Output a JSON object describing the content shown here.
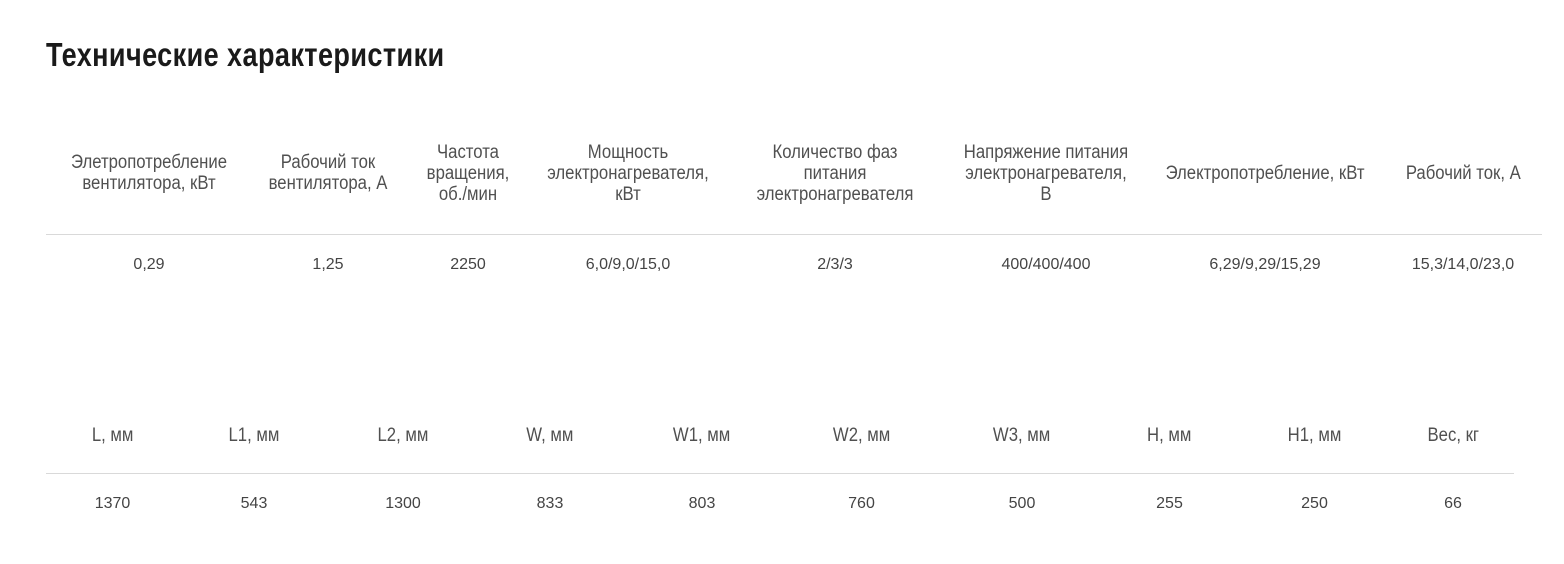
{
  "title": "Технические характеристики",
  "electrical": {
    "headers": [
      "Элетропотребление вентилятора, кВт",
      "Рабочий ток вентилятора, А",
      "Частота вращения, об./мин",
      "Мощность электронагревателя, кВт",
      "Количество фаз питания электронагревателя",
      "Напряжение питания электронагревателя, В",
      "Электропотребление, кВт",
      "Рабочий ток, А"
    ],
    "values": [
      "0,29",
      "1,25",
      "2250",
      "6,0/9,0/15,0",
      "2/3/3",
      "400/400/400",
      "6,29/9,29/15,29",
      "15,3/14,0/23,0"
    ]
  },
  "dimensions": {
    "headers": [
      "L, мм",
      "L1, мм",
      "L2, мм",
      "W, мм",
      "W1, мм",
      "W2, мм",
      "W3, мм",
      "H, мм",
      "H1, мм",
      "Вес, кг"
    ],
    "values": [
      "1370",
      "543",
      "1300",
      "833",
      "803",
      "760",
      "500",
      "255",
      "250",
      "66"
    ]
  }
}
